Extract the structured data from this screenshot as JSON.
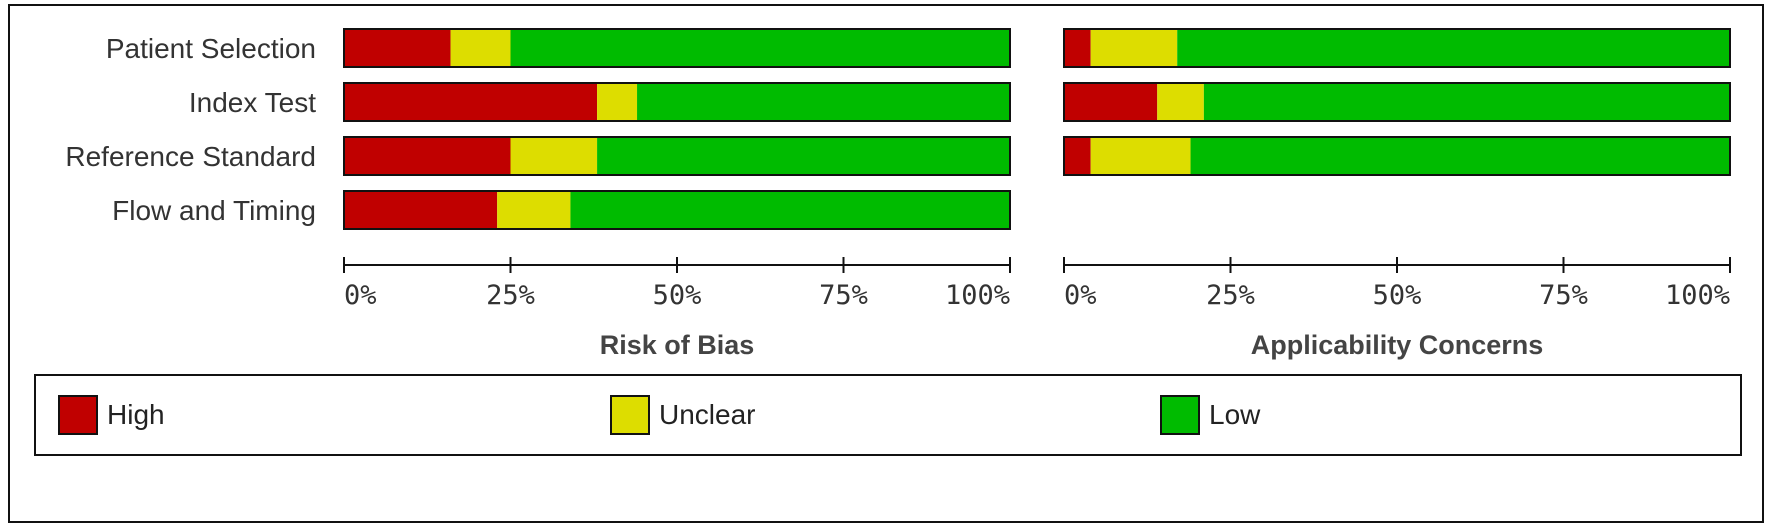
{
  "chart_data": {
    "type": "bar",
    "stacked": true,
    "orientation": "horizontal",
    "colors": {
      "High": "#c00000",
      "Unclear": "#dddd00",
      "Low": "#00bb00"
    },
    "legend": [
      "High",
      "Unclear",
      "Low"
    ],
    "tick_labels": [
      "0%",
      "25%",
      "50%",
      "75%",
      "100%"
    ],
    "xlim": [
      0,
      100
    ],
    "panels": [
      {
        "title": "Risk of Bias",
        "categories": [
          "Patient Selection",
          "Index Test",
          "Reference Standard",
          "Flow and Timing"
        ],
        "series": [
          {
            "name": "High",
            "values": [
              16,
              38,
              25,
              23
            ]
          },
          {
            "name": "Unclear",
            "values": [
              9,
              6,
              13,
              11
            ]
          },
          {
            "name": "Low",
            "values": [
              75,
              56,
              62,
              66
            ]
          }
        ]
      },
      {
        "title": "Applicability Concerns",
        "categories": [
          "Patient Selection",
          "Index Test",
          "Reference Standard"
        ],
        "series": [
          {
            "name": "High",
            "values": [
              4,
              14,
              4
            ]
          },
          {
            "name": "Unclear",
            "values": [
              13,
              7,
              15
            ]
          },
          {
            "name": "Low",
            "values": [
              83,
              79,
              81
            ]
          }
        ]
      }
    ]
  }
}
